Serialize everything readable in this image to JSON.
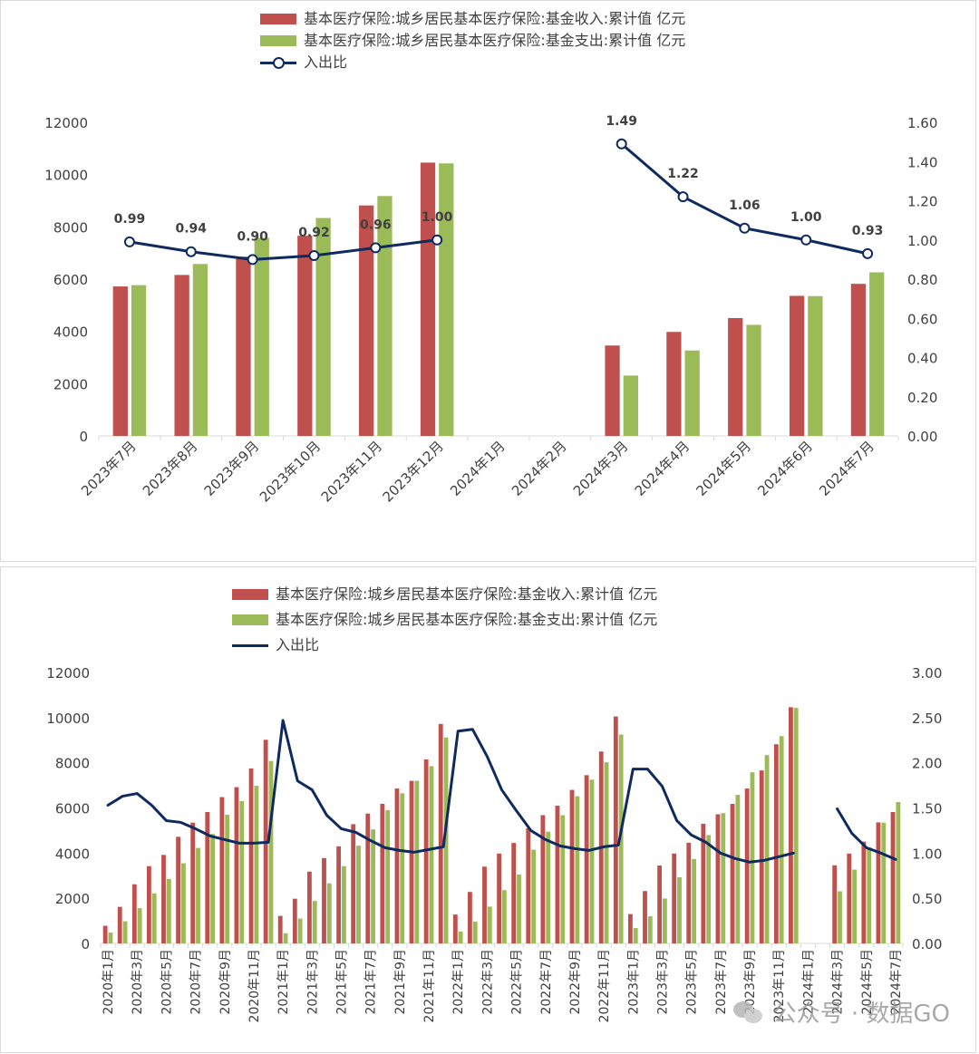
{
  "colors": {
    "income": "#c0504d",
    "expense": "#9bbb59",
    "ratio": "#0f2a5f",
    "axis": "#d9d9d9",
    "text": "#404040"
  },
  "legend": {
    "income": "基本医疗保险:城乡居民基本医疗保险:基金收入:累计值 亿元",
    "expense": "基本医疗保险:城乡居民基本医疗保险:基金支出:累计值 亿元",
    "ratio": "入出比"
  },
  "watermark": {
    "label": "公众号 · 数据GO",
    "icon": "wechat-icon"
  },
  "chart_data": [
    {
      "type": "bar+line",
      "title": "",
      "series": [
        {
          "name": "基本医疗保险:城乡居民基本医疗保险:基金收入:累计值 亿元",
          "type": "bar",
          "axis": "left",
          "values": [
            5720,
            6160,
            6860,
            7660,
            8820,
            10460,
            null,
            null,
            3460,
            3980,
            4510,
            5360,
            5820
          ]
        },
        {
          "name": "基本医疗保险:城乡居民基本医疗保险:基金支出:累计值 亿元",
          "type": "bar",
          "axis": "left",
          "values": [
            5770,
            6580,
            7580,
            8340,
            9180,
            10430,
            null,
            null,
            2310,
            3270,
            4250,
            5350,
            6260
          ]
        },
        {
          "name": "入出比",
          "type": "line",
          "axis": "right",
          "markers": true,
          "labels": true,
          "values": [
            0.99,
            0.94,
            0.9,
            0.92,
            0.96,
            1.0,
            null,
            null,
            1.49,
            1.22,
            1.06,
            1.0,
            0.93
          ],
          "value_labels": [
            "0.99",
            "0.94",
            "0.90",
            "0.92",
            "0.96",
            "1.00",
            "",
            "",
            "1.49",
            "1.22",
            "1.06",
            "1.00",
            "0.93"
          ]
        }
      ],
      "categories": [
        "2023年7月",
        "2023年8月",
        "2023年9月",
        "2023年10月",
        "2023年11月",
        "2023年12月",
        "2024年1月",
        "2024年2月",
        "2024年3月",
        "2024年4月",
        "2024年5月",
        "2024年6月",
        "2024年7月"
      ],
      "category_labels": [
        "2023年7月",
        "2023年8月",
        "2023年9月",
        "2023年10月",
        "2023年11月",
        "2023年12月",
        "2024年1月",
        "2024年2月",
        "2024年3月",
        "2024年4月",
        "2024年5月",
        "2024年6月",
        "2024年7月"
      ],
      "ylim_left": [
        0,
        12000
      ],
      "yticks_left": [
        "0",
        "2000",
        "4000",
        "6000",
        "8000",
        "10000",
        "12000"
      ],
      "ylim_right": [
        0,
        1.6
      ],
      "yticks_right": [
        "0.00",
        "0.20",
        "0.40",
        "0.60",
        "0.80",
        "1.00",
        "1.20",
        "1.40",
        "1.60"
      ],
      "grid": false,
      "legend": "top-center"
    },
    {
      "type": "bar+line",
      "title": "",
      "series": [
        {
          "name": "基本医疗保险:城乡居民基本医疗保险:基金收入:累计值 亿元",
          "type": "bar",
          "axis": "left",
          "values": [
            780,
            1620,
            2620,
            3420,
            3920,
            4720,
            5350,
            5820,
            6480,
            6920,
            7750,
            9020,
            1220,
            1980,
            3180,
            3780,
            4300,
            5280,
            5750,
            6180,
            6860,
            7200,
            8150,
            9720,
            1280,
            2280,
            3400,
            3980,
            4450,
            5100,
            5680,
            6100,
            6800,
            7450,
            8500,
            10050,
            1300,
            2320,
            3450,
            3980,
            4460,
            5300,
            5720,
            6180,
            6860,
            7660,
            8820,
            10460,
            null,
            null,
            3460,
            3980,
            4510,
            5360,
            5820
          ]
        },
        {
          "name": "基本医疗保险:城乡居民基本医疗保险:基金支出:累计值 亿元",
          "type": "bar",
          "axis": "left",
          "values": [
            480,
            980,
            1560,
            2220,
            2860,
            3550,
            4230,
            4850,
            5700,
            6300,
            6980,
            8080,
            450,
            1100,
            1880,
            2660,
            3420,
            4330,
            5050,
            5900,
            6650,
            7200,
            7850,
            9120,
            530,
            970,
            1630,
            2360,
            3050,
            4150,
            4950,
            5680,
            6520,
            7250,
            8020,
            9250,
            680,
            1200,
            1990,
            2930,
            3740,
            4800,
            5770,
            6580,
            7580,
            8340,
            9180,
            10430,
            null,
            null,
            2310,
            3270,
            4250,
            5350,
            6260
          ]
        },
        {
          "name": "入出比",
          "type": "line",
          "axis": "right",
          "markers": false,
          "labels": false,
          "values": [
            1.53,
            1.63,
            1.66,
            1.53,
            1.36,
            1.34,
            1.27,
            1.19,
            1.15,
            1.11,
            1.11,
            1.12,
            2.47,
            1.8,
            1.7,
            1.42,
            1.27,
            1.23,
            1.14,
            1.06,
            1.03,
            1.01,
            1.04,
            1.07,
            2.35,
            2.37,
            2.07,
            1.7,
            1.47,
            1.25,
            1.15,
            1.08,
            1.05,
            1.03,
            1.07,
            1.09,
            1.93,
            1.93,
            1.74,
            1.36,
            1.2,
            1.12,
            1.0,
            0.94,
            0.9,
            0.92,
            0.96,
            1.0,
            null,
            null,
            1.49,
            1.22,
            1.06,
            1.0,
            0.93
          ]
        }
      ],
      "categories": [
        "2020年1月",
        "2020年2月",
        "2020年3月",
        "2020年4月",
        "2020年5月",
        "2020年6月",
        "2020年7月",
        "2020年8月",
        "2020年9月",
        "2020年10月",
        "2020年11月",
        "2020年12月",
        "2021年1月",
        "2021年2月",
        "2021年3月",
        "2021年4月",
        "2021年5月",
        "2021年6月",
        "2021年7月",
        "2021年8月",
        "2021年9月",
        "2021年10月",
        "2021年11月",
        "2021年12月",
        "2022年1月",
        "2022年2月",
        "2022年3月",
        "2022年4月",
        "2022年5月",
        "2022年6月",
        "2022年7月",
        "2022年8月",
        "2022年9月",
        "2022年10月",
        "2022年11月",
        "2022年12月",
        "2023年1月",
        "2023年2月",
        "2023年3月",
        "2023年4月",
        "2023年5月",
        "2023年6月",
        "2023年7月",
        "2023年8月",
        "2023年9月",
        "2023年10月",
        "2023年11月",
        "2023年12月",
        "2024年1月",
        "2024年2月",
        "2024年3月",
        "2024年4月",
        "2024年5月",
        "2024年6月",
        "2024年7月"
      ],
      "category_labels": [
        "2020年1月",
        "",
        "2020年3月",
        "",
        "2020年5月",
        "",
        "2020年7月",
        "",
        "2020年9月",
        "",
        "2020年11月",
        "",
        "2021年1月",
        "",
        "2021年3月",
        "",
        "2021年5月",
        "",
        "2021年7月",
        "",
        "2021年9月",
        "",
        "2021年11月",
        "",
        "2022年1月",
        "",
        "2022年3月",
        "",
        "2022年5月",
        "",
        "2022年7月",
        "",
        "2022年9月",
        "",
        "2022年11月",
        "",
        "2023年1月",
        "",
        "2023年3月",
        "",
        "2023年5月",
        "",
        "2023年7月",
        "",
        "2023年9月",
        "",
        "2023年11月",
        "",
        "2024年1月",
        "",
        "2024年3月",
        "",
        "2024年5月",
        "",
        "2024年7月"
      ],
      "ylim_left": [
        0,
        12000
      ],
      "yticks_left": [
        "0",
        "2000",
        "4000",
        "6000",
        "8000",
        "10000",
        "12000"
      ],
      "ylim_right": [
        0,
        3
      ],
      "yticks_right": [
        "0.00",
        "0.50",
        "1.00",
        "1.50",
        "2.00",
        "2.50",
        "3.00"
      ],
      "grid": false,
      "legend": "top-center"
    }
  ]
}
